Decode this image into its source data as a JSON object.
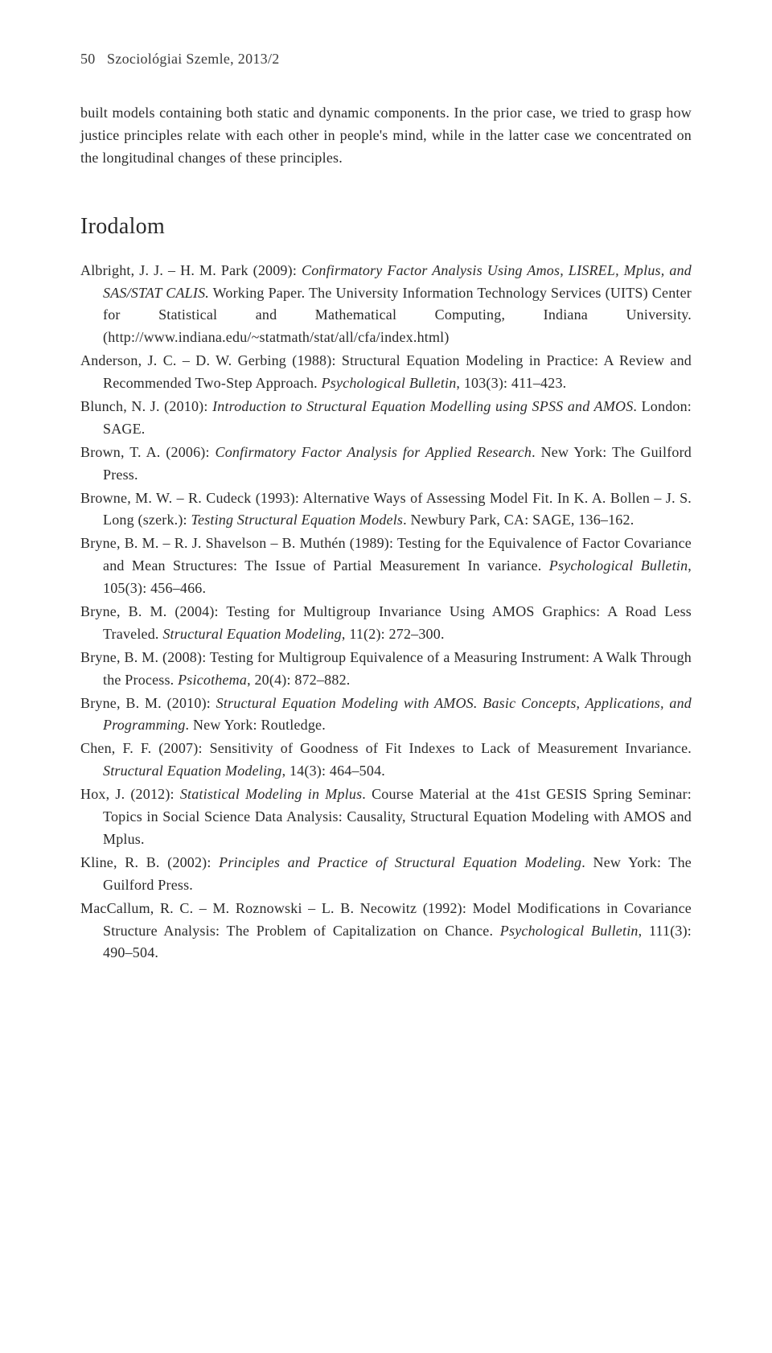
{
  "header": {
    "page_number": "50",
    "journal": "Szociológiai Szemle, 2013/2"
  },
  "body_paragraph": "built models containing both static and dynamic components. In the prior case, we tried to grasp how justice principles relate with each other in people's mind, while in the latter case we concentrated on the longitudinal changes of these principles.",
  "section_title": "Irodalom",
  "references": [
    {
      "pre": "Albright, J. J. – H. M. Park (2009): ",
      "ital": "Confirmatory Factor Analysis Using Amos, LISREL, Mplus, and SAS/STAT CALIS.",
      "mid": " Working Paper. The University Information Technology Services (UITS) Center for Statistical and Mathematical Computing, Indiana University. (http://www.indiana.edu/~statmath/stat/all/cfa/index.html)"
    },
    {
      "pre": "Anderson, J. C. – D. W. Gerbing (1988): Structural Equation Modeling in Practice: A Review and Recommended Two-Step Approach. ",
      "ital": "Psychological Bulletin",
      "mid": ", 103(3): 411–423."
    },
    {
      "pre": "Blunch, N. J. (2010): ",
      "ital": "Introduction to Structural Equation Modelling using SPSS and AMOS",
      "mid": ". London: SAGE."
    },
    {
      "pre": "Brown, T. A. (2006): ",
      "ital": "Confirmatory Factor Analysis for Applied Research",
      "mid": ". New York: The Guilford Press."
    },
    {
      "pre": "Browne, M. W. – R. Cudeck (1993): Alternative Ways of Assessing Model Fit. In K. A. Bollen – J. S. Long (szerk.): ",
      "ital": "Testing Structural Equation Models",
      "mid": ". Newbury Park, CA: SAGE, 136–162."
    },
    {
      "pre": "Bryne, B. M. – R. J. Shavelson – B. Muthén (1989): Testing for the Equivalence of Factor Covariance and Mean Structures: The Issue of Partial Measurement In variance. ",
      "ital": "Psychological Bulletin",
      "mid": ", 105(3): 456–466."
    },
    {
      "pre": "Bryne, B. M. (2004): Testing for Multigroup Invariance Using AMOS Graphics: A Road Less Traveled. ",
      "ital": "Structural Equation Modeling",
      "mid": ", 11(2): 272–300."
    },
    {
      "pre": "Bryne, B. M. (2008): Testing for Multigroup Equivalence of a Measuring Instrument: A Walk Through the Process. ",
      "ital": "Psicothema",
      "mid": ", 20(4): 872–882."
    },
    {
      "pre": "Bryne, B. M. (2010): ",
      "ital": "Structural Equation Modeling with AMOS. Basic Concepts, Applications, and Programming",
      "mid": ". New York: Routledge."
    },
    {
      "pre": "Chen, F. F. (2007): Sensitivity of Goodness of Fit Indexes to Lack of Measurement Invariance. ",
      "ital": "Structural Equation Modeling",
      "mid": ", 14(3): 464–504."
    },
    {
      "pre": "Hox, J. (2012): ",
      "ital": "Statistical Modeling in Mplus",
      "mid": ". Course Material at the 41st GESIS Spring Seminar: Topics in Social Science Data Analysis: Causality, Structural Equation Modeling with AMOS and Mplus."
    },
    {
      "pre": "Kline, R. B. (2002): ",
      "ital": "Principles and Practice of Structural Equation Modeling",
      "mid": ". New York: The Guilford Press."
    },
    {
      "pre": "MacCallum, R. C. – M. Roznowski – L. B. Necowitz (1992): Model Modifications in Covariance Structure Analysis: The Problem of Capitalization on Chance. ",
      "ital": "Psychological Bulletin",
      "mid": ", 111(3): 490–504."
    }
  ]
}
